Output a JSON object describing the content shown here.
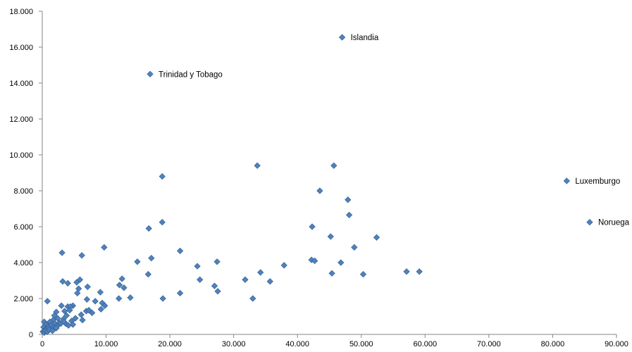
{
  "chart_data": {
    "type": "scatter",
    "title": "",
    "xlabel": "",
    "ylabel": "",
    "xlim": [
      0,
      90000
    ],
    "ylim": [
      0,
      18000
    ],
    "grid": false,
    "legend": "none",
    "marker_color": "#4F81BD",
    "marker_edge_color": "#2F5D8C",
    "x_ticks": [
      {
        "value": 0,
        "label": "0"
      },
      {
        "value": 10000,
        "label": "10.000"
      },
      {
        "value": 20000,
        "label": "20.000"
      },
      {
        "value": 30000,
        "label": "30.000"
      },
      {
        "value": 40000,
        "label": "40.000"
      },
      {
        "value": 50000,
        "label": "50.000"
      },
      {
        "value": 60000,
        "label": "60.000"
      },
      {
        "value": 70000,
        "label": "70.000"
      },
      {
        "value": 80000,
        "label": "80.000"
      },
      {
        "value": 90000,
        "label": "90.000"
      }
    ],
    "y_ticks": [
      {
        "value": 0,
        "label": "0"
      },
      {
        "value": 2000,
        "label": "2.000"
      },
      {
        "value": 4000,
        "label": "4.000"
      },
      {
        "value": 6000,
        "label": "6.000"
      },
      {
        "value": 8000,
        "label": "8.000"
      },
      {
        "value": 10000,
        "label": "10.000"
      },
      {
        "value": 12000,
        "label": "12.000"
      },
      {
        "value": 14000,
        "label": "14.000"
      },
      {
        "value": 16000,
        "label": "16.000"
      },
      {
        "value": 18000,
        "label": "18.000"
      }
    ],
    "annotations": [
      {
        "label": "Islandia",
        "x": 47000,
        "y": 16550
      },
      {
        "label": "Trinidad y Tobago",
        "x": 16900,
        "y": 14500
      },
      {
        "label": "Luxemburgo",
        "x": 82200,
        "y": 8550
      },
      {
        "label": "Noruega",
        "x": 85800,
        "y": 6250
      }
    ],
    "points": [
      [
        47000,
        16550
      ],
      [
        16900,
        14500
      ],
      [
        82200,
        8550
      ],
      [
        85800,
        6250
      ],
      [
        33700,
        9400
      ],
      [
        45700,
        9400
      ],
      [
        18800,
        8800
      ],
      [
        43500,
        8000
      ],
      [
        47900,
        7500
      ],
      [
        48100,
        6650
      ],
      [
        18800,
        6250
      ],
      [
        42300,
        6000
      ],
      [
        16700,
        5900
      ],
      [
        45200,
        5450
      ],
      [
        52400,
        5400
      ],
      [
        9700,
        4850
      ],
      [
        48900,
        4850
      ],
      [
        3100,
        4550
      ],
      [
        21600,
        4650
      ],
      [
        6200,
        4400
      ],
      [
        17100,
        4250
      ],
      [
        42200,
        4150
      ],
      [
        42700,
        4100
      ],
      [
        27400,
        4050
      ],
      [
        46800,
        4000
      ],
      [
        14900,
        4050
      ],
      [
        24300,
        3800
      ],
      [
        37900,
        3850
      ],
      [
        34200,
        3450
      ],
      [
        45400,
        3400
      ],
      [
        50300,
        3350
      ],
      [
        57100,
        3500
      ],
      [
        59100,
        3500
      ],
      [
        16600,
        3350
      ],
      [
        24700,
        3050
      ],
      [
        31800,
        3050
      ],
      [
        35700,
        2950
      ],
      [
        3200,
        2950
      ],
      [
        4000,
        2850
      ],
      [
        5400,
        2900
      ],
      [
        5900,
        3050
      ],
      [
        12500,
        3100
      ],
      [
        12100,
        2750
      ],
      [
        12800,
        2600
      ],
      [
        7100,
        2650
      ],
      [
        5700,
        2550
      ],
      [
        27000,
        2700
      ],
      [
        27500,
        2400
      ],
      [
        21600,
        2300
      ],
      [
        5500,
        2300
      ],
      [
        9100,
        2350
      ],
      [
        12000,
        2000
      ],
      [
        13800,
        2050
      ],
      [
        18900,
        2000
      ],
      [
        33000,
        2000
      ],
      [
        7000,
        1950
      ],
      [
        8300,
        1850
      ],
      [
        9400,
        1750
      ],
      [
        9800,
        1600
      ],
      [
        9200,
        1400
      ],
      [
        800,
        1850
      ],
      [
        3000,
        1600
      ],
      [
        4000,
        1550
      ],
      [
        4800,
        1600
      ],
      [
        4400,
        1550
      ],
      [
        2200,
        1250
      ],
      [
        3500,
        1300
      ],
      [
        3800,
        1050
      ],
      [
        4300,
        1350
      ],
      [
        6100,
        1100
      ],
      [
        6900,
        1300
      ],
      [
        7800,
        1200
      ],
      [
        7300,
        1350
      ],
      [
        1900,
        1050
      ],
      [
        1700,
        800
      ],
      [
        2400,
        900
      ],
      [
        3300,
        850
      ],
      [
        4600,
        750
      ],
      [
        5200,
        900
      ],
      [
        6300,
        800
      ],
      [
        1200,
        700
      ],
      [
        2000,
        600
      ],
      [
        2700,
        650
      ],
      [
        3700,
        600
      ],
      [
        4800,
        550
      ],
      [
        300,
        700
      ],
      [
        600,
        550
      ],
      [
        900,
        450
      ],
      [
        1400,
        500
      ],
      [
        1800,
        400
      ],
      [
        2300,
        450
      ],
      [
        2900,
        600
      ],
      [
        3400,
        700
      ],
      [
        4100,
        500
      ],
      [
        200,
        400
      ],
      [
        400,
        250
      ],
      [
        700,
        300
      ],
      [
        1000,
        350
      ],
      [
        1500,
        300
      ],
      [
        2200,
        350
      ],
      [
        100,
        150
      ],
      [
        300,
        100
      ],
      [
        500,
        200
      ],
      [
        800,
        150
      ],
      [
        1100,
        250
      ],
      [
        1600,
        200
      ]
    ]
  }
}
